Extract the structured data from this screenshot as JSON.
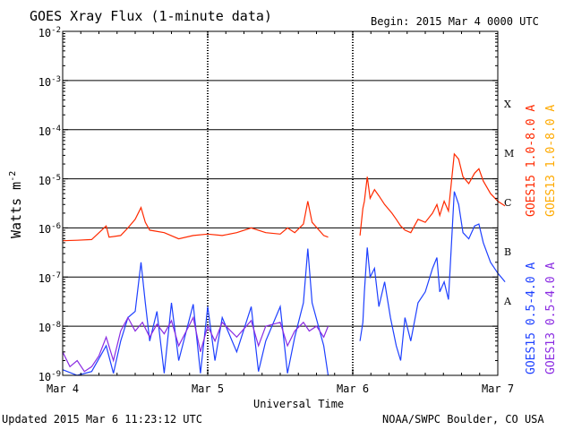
{
  "header": {
    "title": "GOES Xray Flux (1-minute data)",
    "begin": "Begin:  2015 Mar 4 0000 UTC"
  },
  "footer": {
    "updated": "Updated 2015 Mar  6 11:23:12 UTC",
    "credit": "NOAA/SWPC Boulder, CO USA"
  },
  "chart_data": {
    "type": "line",
    "title": "GOES Xray Flux (1-minute data)",
    "xlabel": "Universal Time",
    "ylabel": "Watts m",
    "ylabel_sup": "-2",
    "yscale": "log",
    "ylim": [
      1e-09,
      0.01
    ],
    "xlim_days": [
      0,
      3
    ],
    "x_tick_labels": [
      "Mar 4",
      "Mar 5",
      "Mar 6",
      "Mar 7"
    ],
    "y_tick_labels": [
      {
        "base": "10",
        "exp": "-9"
      },
      {
        "base": "10",
        "exp": "-8"
      },
      {
        "base": "10",
        "exp": "-7"
      },
      {
        "base": "10",
        "exp": "-6"
      },
      {
        "base": "10",
        "exp": "-5"
      },
      {
        "base": "10",
        "exp": "-4"
      },
      {
        "base": "10",
        "exp": "-3"
      },
      {
        "base": "10",
        "exp": "-2"
      }
    ],
    "flare_classes": [
      "A",
      "B",
      "C",
      "M",
      "X"
    ],
    "grid": true,
    "legend": [
      {
        "label": "GOES15 1.0-8.0 A",
        "color": "#ff2a00"
      },
      {
        "label": "GOES13 1.0-8.0 A",
        "color": "#ffaa00"
      },
      {
        "label": "GOES15 0.5-4.0 A",
        "color": "#1e40ff"
      },
      {
        "label": "GOES13 0.5-4.0 A",
        "color": "#8a2be2"
      }
    ],
    "series": [
      {
        "name": "GOES15 1.0-8.0 A",
        "color": "#ff2a00",
        "segments": [
          [
            [
              0,
              5.5e-07
            ],
            [
              0.1,
              5.6e-07
            ],
            [
              0.2,
              5.8e-07
            ],
            [
              0.3,
              1.1e-06
            ],
            [
              0.32,
              6.5e-07
            ],
            [
              0.4,
              7e-07
            ],
            [
              0.45,
              1e-06
            ],
            [
              0.5,
              1.5e-06
            ],
            [
              0.54,
              2.6e-06
            ],
            [
              0.57,
              1.3e-06
            ],
            [
              0.6,
              9e-07
            ],
            [
              0.7,
              8e-07
            ],
            [
              0.8,
              6e-07
            ],
            [
              0.9,
              7e-07
            ],
            [
              1.0,
              7.5e-07
            ],
            [
              1.1,
              7e-07
            ],
            [
              1.2,
              8e-07
            ],
            [
              1.3,
              1e-06
            ],
            [
              1.4,
              8e-07
            ],
            [
              1.5,
              7.5e-07
            ],
            [
              1.55,
              1e-06
            ],
            [
              1.6,
              8e-07
            ],
            [
              1.66,
              1.2e-06
            ],
            [
              1.69,
              3.5e-06
            ],
            [
              1.72,
              1.3e-06
            ],
            [
              1.8,
              7e-07
            ],
            [
              1.83,
              6.5e-07
            ]
          ],
          [
            [
              2.05,
              7e-07
            ],
            [
              2.07,
              2.5e-06
            ],
            [
              2.08,
              3.5e-06
            ],
            [
              2.1,
              1.1e-05
            ],
            [
              2.12,
              4e-06
            ],
            [
              2.15,
              6e-06
            ],
            [
              2.18,
              4.5e-06
            ],
            [
              2.22,
              3e-06
            ],
            [
              2.27,
              2e-06
            ],
            [
              2.3,
              1.5e-06
            ],
            [
              2.33,
              1.1e-06
            ],
            [
              2.36,
              9e-07
            ],
            [
              2.4,
              8e-07
            ],
            [
              2.45,
              1.5e-06
            ],
            [
              2.5,
              1.3e-06
            ],
            [
              2.55,
              2e-06
            ],
            [
              2.58,
              3e-06
            ],
            [
              2.6,
              1.8e-06
            ],
            [
              2.63,
              3.5e-06
            ],
            [
              2.66,
              2.2e-06
            ],
            [
              2.7,
              3.2e-05
            ],
            [
              2.73,
              2.5e-05
            ],
            [
              2.76,
              1.1e-05
            ],
            [
              2.8,
              8e-06
            ],
            [
              2.84,
              1.3e-05
            ],
            [
              2.87,
              1.6e-05
            ],
            [
              2.9,
              9e-06
            ],
            [
              2.95,
              5e-06
            ],
            [
              3.0,
              3.5e-06
            ],
            [
              3.05,
              2.8e-06
            ]
          ]
        ]
      },
      {
        "name": "GOES15 0.5-4.0 A",
        "color": "#1e40ff",
        "segments": [
          [
            [
              0.0,
              1.3e-09
            ],
            [
              0.1,
              1e-09
            ],
            [
              0.2,
              1.2e-09
            ],
            [
              0.3,
              4e-09
            ],
            [
              0.35,
              1.1e-09
            ],
            [
              0.4,
              5e-09
            ],
            [
              0.45,
              1.5e-08
            ],
            [
              0.5,
              2e-08
            ],
            [
              0.54,
              2e-07
            ],
            [
              0.57,
              3e-08
            ],
            [
              0.6,
              5e-09
            ],
            [
              0.65,
              2e-08
            ],
            [
              0.7,
              1.1e-09
            ],
            [
              0.75,
              3e-08
            ],
            [
              0.8,
              2e-09
            ],
            [
              0.9,
              2.8e-08
            ],
            [
              0.95,
              1.1e-09
            ],
            [
              1.0,
              2.5e-08
            ],
            [
              1.05,
              2e-09
            ],
            [
              1.1,
              1.5e-08
            ],
            [
              1.2,
              3e-09
            ],
            [
              1.3,
              2.5e-08
            ],
            [
              1.35,
              1.2e-09
            ],
            [
              1.4,
              5e-09
            ],
            [
              1.5,
              2.5e-08
            ],
            [
              1.55,
              1.1e-09
            ],
            [
              1.6,
              6e-09
            ],
            [
              1.66,
              3e-08
            ],
            [
              1.69,
              3.8e-07
            ],
            [
              1.72,
              3e-08
            ],
            [
              1.8,
              4e-09
            ],
            [
              1.83,
              1e-09
            ]
          ],
          [
            [
              2.05,
              5e-09
            ],
            [
              2.07,
              1.2e-08
            ],
            [
              2.08,
              5e-08
            ],
            [
              2.1,
              4e-07
            ],
            [
              2.12,
              1e-07
            ],
            [
              2.15,
              1.5e-07
            ],
            [
              2.18,
              2.5e-08
            ],
            [
              2.22,
              8e-08
            ],
            [
              2.26,
              1.5e-08
            ],
            [
              2.3,
              4e-09
            ],
            [
              2.33,
              2e-09
            ],
            [
              2.36,
              1.5e-08
            ],
            [
              2.4,
              5e-09
            ],
            [
              2.45,
              3e-08
            ],
            [
              2.5,
              5e-08
            ],
            [
              2.55,
              1.5e-07
            ],
            [
              2.58,
              2.5e-07
            ],
            [
              2.6,
              5e-08
            ],
            [
              2.63,
              8e-08
            ],
            [
              2.66,
              3.5e-08
            ],
            [
              2.7,
              5.5e-06
            ],
            [
              2.73,
              3e-06
            ],
            [
              2.76,
              8e-07
            ],
            [
              2.8,
              6e-07
            ],
            [
              2.84,
              1.1e-06
            ],
            [
              2.87,
              1.2e-06
            ],
            [
              2.9,
              5e-07
            ],
            [
              2.95,
              2e-07
            ],
            [
              3.0,
              1.2e-07
            ],
            [
              3.05,
              8e-08
            ]
          ]
        ]
      },
      {
        "name": "GOES13 0.5-4.0 A",
        "color": "#8a2be2",
        "segments": [
          [
            [
              0.0,
              3e-09
            ],
            [
              0.05,
              1.5e-09
            ],
            [
              0.1,
              2e-09
            ],
            [
              0.15,
              1.2e-09
            ],
            [
              0.2,
              1.5e-09
            ],
            [
              0.25,
              2.5e-09
            ],
            [
              0.3,
              6e-09
            ],
            [
              0.35,
              2e-09
            ],
            [
              0.4,
              8e-09
            ],
            [
              0.45,
              1.5e-08
            ],
            [
              0.5,
              8e-09
            ],
            [
              0.55,
              1.2e-08
            ],
            [
              0.6,
              6e-09
            ],
            [
              0.65,
              1.1e-08
            ],
            [
              0.7,
              7e-09
            ],
            [
              0.75,
              1.3e-08
            ],
            [
              0.8,
              4e-09
            ],
            [
              0.9,
              1.5e-08
            ],
            [
              0.95,
              3e-09
            ],
            [
              1.0,
              1e-08
            ],
            [
              1.05,
              5e-09
            ],
            [
              1.1,
              1.2e-08
            ],
            [
              1.2,
              6e-09
            ],
            [
              1.3,
              1.3e-08
            ],
            [
              1.35,
              4e-09
            ],
            [
              1.4,
              1e-08
            ],
            [
              1.5,
              1.2e-08
            ],
            [
              1.55,
              4e-09
            ],
            [
              1.6,
              8e-09
            ],
            [
              1.66,
              1.2e-08
            ],
            [
              1.7,
              8e-09
            ],
            [
              1.75,
              1e-08
            ],
            [
              1.8,
              6e-09
            ],
            [
              1.83,
              1e-08
            ]
          ]
        ]
      }
    ]
  }
}
